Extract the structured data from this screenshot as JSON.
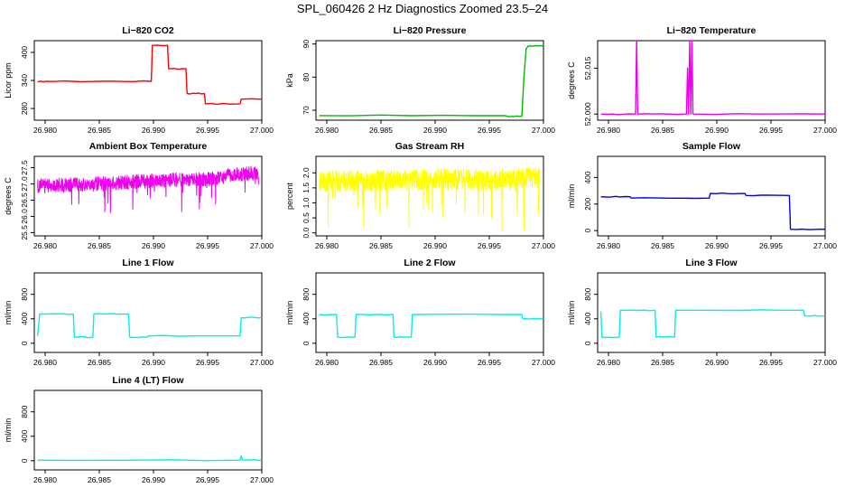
{
  "page_title": "SPL_060426  2 Hz Diagnostics Zoomed 23.5–24",
  "chart_data": [
    {
      "type": "line",
      "title": "Li−820 CO2",
      "ylabel": "Licor ppm",
      "color": "#ff0000",
      "xlim": [
        26.979,
        27.0
      ],
      "ylim": [
        255,
        425
      ],
      "xticks": [
        26.98,
        26.985,
        26.99,
        26.995,
        27.0
      ],
      "xtick_labels": [
        "26.980",
        "26.985",
        "26.990",
        "26.995",
        "27.000"
      ],
      "yticks": [
        280,
        340,
        400
      ],
      "ytick_labels": [
        "280",
        "340",
        "400"
      ],
      "x": [
        26.9793,
        26.98,
        26.985,
        26.9898,
        26.9899,
        26.9913,
        26.9914,
        26.993,
        26.9931,
        26.9947,
        26.9948,
        26.998,
        26.9981,
        27.0
      ],
      "y": [
        338,
        338,
        338,
        338,
        415,
        415,
        365,
        365,
        312,
        312,
        290,
        290,
        300,
        300
      ]
    },
    {
      "type": "line",
      "title": "Li−820 Pressure",
      "ylabel": "kPa",
      "color": "#00bb00",
      "xlim": [
        26.979,
        27.0
      ],
      "ylim": [
        67,
        91
      ],
      "xticks": [
        26.98,
        26.985,
        26.99,
        26.995,
        27.0
      ],
      "xtick_labels": [
        "26.980",
        "26.985",
        "26.990",
        "26.995",
        "27.000"
      ],
      "yticks": [
        70,
        80,
        90
      ],
      "ytick_labels": [
        "70",
        "80",
        "90"
      ],
      "x": [
        26.9793,
        26.9965,
        26.9966,
        26.998,
        26.9982,
        26.9984,
        26.9986,
        27.0
      ],
      "y": [
        68.4,
        68.4,
        68.2,
        68.2,
        80,
        88.5,
        89.4,
        89.4
      ]
    },
    {
      "type": "line",
      "title": "Li−820 Temperature",
      "ylabel": "degrees C",
      "color": "#ee00ee",
      "xlim": [
        26.979,
        27.0
      ],
      "ylim": [
        51.998,
        52.024
      ],
      "xticks": [
        26.98,
        26.985,
        26.99,
        26.995,
        27.0
      ],
      "xtick_labels": [
        "26.980",
        "26.985",
        "26.990",
        "26.995",
        "27.000"
      ],
      "yticks": [
        52.0,
        52.015
      ],
      "ytick_labels": [
        "52.000",
        "52.015"
      ],
      "x": [
        26.9793,
        26.9825,
        26.9826,
        26.9827,
        26.9872,
        26.9873,
        26.9874,
        26.9875,
        26.9876,
        26.9877,
        26.9878,
        27.0
      ],
      "y": [
        52.0,
        52.0,
        52.025,
        52.0,
        52.0,
        52.015,
        52.0,
        52.025,
        52.0,
        52.025,
        52.0,
        52.0
      ]
    },
    {
      "type": "line",
      "title": "Ambient Box Temperature",
      "ylabel": "degrees C",
      "color": "#ee00ee",
      "xlim": [
        26.979,
        27.0
      ],
      "ylim": [
        25.4,
        27.85
      ],
      "xticks": [
        26.98,
        26.985,
        26.99,
        26.995,
        27.0
      ],
      "xtick_labels": [
        "26.980",
        "26.985",
        "26.990",
        "26.995",
        "27.000"
      ],
      "yticks": [
        25.5,
        26.0,
        26.5,
        27.0,
        27.5
      ],
      "ytick_labels": [
        "25.5",
        "26.0",
        "26.5",
        "27.0",
        "27.5"
      ],
      "x": [
        26.9793,
        26.985,
        26.99,
        26.995,
        26.998,
        27.0
      ],
      "y": [
        26.95,
        27.0,
        27.1,
        27.15,
        27.3,
        27.35
      ]
    },
    {
      "type": "line",
      "title": "Gas Stream RH",
      "ylabel": "percent",
      "color": "#ffff00",
      "xlim": [
        26.979,
        27.0
      ],
      "ylim": [
        -0.1,
        2.55
      ],
      "xticks": [
        26.98,
        26.985,
        26.99,
        26.995,
        27.0
      ],
      "xtick_labels": [
        "26.980",
        "26.985",
        "26.990",
        "26.995",
        "27.000"
      ],
      "yticks": [
        0.0,
        0.5,
        1.0,
        1.5,
        2.0
      ],
      "ytick_labels": [
        "0.0",
        "0.5",
        "1.0",
        "1.5",
        "2.0"
      ],
      "x": [
        26.9793,
        26.985,
        26.99,
        26.995,
        27.0
      ],
      "y": [
        1.7,
        1.75,
        1.8,
        1.75,
        1.85
      ]
    },
    {
      "type": "line",
      "title": "Sample Flow",
      "ylabel": "ml/min",
      "color": "#0000ee",
      "xlim": [
        26.979,
        27.0
      ],
      "ylim": [
        -40,
        560
      ],
      "xticks": [
        26.98,
        26.985,
        26.99,
        26.995,
        27.0
      ],
      "xtick_labels": [
        "26.980",
        "26.985",
        "26.990",
        "26.995",
        "27.000"
      ],
      "yticks": [
        0,
        200,
        400
      ],
      "ytick_labels": [
        "0",
        "200",
        "400"
      ],
      "x": [
        26.9793,
        26.982,
        26.9821,
        26.9893,
        26.9894,
        26.9926,
        26.9927,
        26.9967,
        26.9968,
        27.0
      ],
      "y": [
        255,
        255,
        245,
        245,
        280,
        280,
        265,
        265,
        10,
        10
      ]
    },
    {
      "type": "line",
      "title": "Line 1 Flow",
      "ylabel": "ml/min",
      "color": "#00eeee",
      "xlim": [
        26.979,
        27.0
      ],
      "ylim": [
        -150,
        1150
      ],
      "xticks": [
        26.98,
        26.985,
        26.99,
        26.995,
        27.0
      ],
      "xtick_labels": [
        "26.980",
        "26.985",
        "26.990",
        "26.995",
        "27.000"
      ],
      "yticks": [
        0,
        400,
        800
      ],
      "ytick_labels": [
        "0",
        "400",
        "800"
      ],
      "x": [
        26.9793,
        26.9795,
        26.9826,
        26.9827,
        26.9844,
        26.9845,
        26.9877,
        26.9878,
        26.9894,
        26.9895,
        26.998,
        26.9981,
        27.0
      ],
      "y": [
        120,
        480,
        480,
        100,
        100,
        480,
        480,
        100,
        100,
        120,
        120,
        420,
        420
      ]
    },
    {
      "type": "line",
      "title": "Line 2 Flow",
      "ylabel": "ml/min",
      "color": "#00eeee",
      "xlim": [
        26.979,
        27.0
      ],
      "ylim": [
        -150,
        1150
      ],
      "xticks": [
        26.98,
        26.985,
        26.99,
        26.995,
        27.0
      ],
      "xtick_labels": [
        "26.980",
        "26.985",
        "26.990",
        "26.995",
        "27.000"
      ],
      "yticks": [
        0,
        400,
        800
      ],
      "ytick_labels": [
        "0",
        "400",
        "800"
      ],
      "x": [
        26.9793,
        26.9809,
        26.981,
        26.9826,
        26.9827,
        26.9861,
        26.9862,
        26.9878,
        26.9879,
        26.998,
        26.9981,
        27.0
      ],
      "y": [
        470,
        470,
        100,
        100,
        470,
        470,
        100,
        100,
        470,
        470,
        400,
        400
      ]
    },
    {
      "type": "line",
      "title": "Line 3 Flow",
      "ylabel": "ml/min",
      "color": "#00eeee",
      "xlim": [
        26.979,
        27.0
      ],
      "ylim": [
        -150,
        1150
      ],
      "xticks": [
        26.98,
        26.985,
        26.99,
        26.995,
        27.0
      ],
      "xtick_labels": [
        "26.980",
        "26.985",
        "26.990",
        "26.995",
        "27.000"
      ],
      "yticks": [
        0,
        400,
        800
      ],
      "ytick_labels": [
        "0",
        "400",
        "800"
      ],
      "x": [
        26.9793,
        26.9794,
        26.9795,
        26.981,
        26.9811,
        26.9843,
        26.9844,
        26.9861,
        26.9862,
        26.998,
        26.9981,
        27.0
      ],
      "y": [
        520,
        100,
        100,
        100,
        540,
        540,
        100,
        100,
        540,
        540,
        450,
        450
      ]
    },
    {
      "type": "line",
      "title": "Line 4 (LT) Flow",
      "ylabel": "ml/min",
      "color": "#00eeee",
      "xlim": [
        26.979,
        27.0
      ],
      "ylim": [
        -150,
        1150
      ],
      "xticks": [
        26.98,
        26.985,
        26.99,
        26.995,
        27.0
      ],
      "xtick_labels": [
        "26.980",
        "26.985",
        "26.990",
        "26.995",
        "27.000"
      ],
      "yticks": [
        0,
        400,
        800
      ],
      "ytick_labels": [
        "0",
        "400",
        "800"
      ],
      "x": [
        26.9793,
        26.998,
        26.9981,
        26.9982,
        26.9983,
        27.0
      ],
      "y": [
        10,
        10,
        80,
        20,
        10,
        10
      ]
    }
  ]
}
